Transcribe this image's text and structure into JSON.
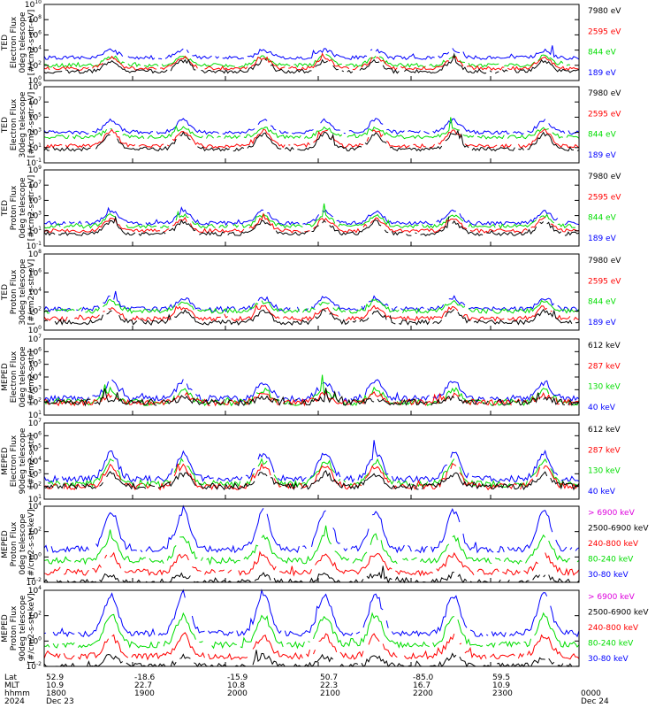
{
  "chart_data": [
    {
      "type": "line",
      "instrument": "TED",
      "ylabel_lines": [
        "TED",
        "Electron Flux",
        "0deg telescope",
        "[#/cm2-s-str-eV]"
      ],
      "y_exponents": [
        0,
        2,
        4,
        6,
        8,
        10
      ],
      "yscale": "log",
      "legend": [
        {
          "label": "7980 eV",
          "color": "#000000"
        },
        {
          "label": "2595 eV",
          "color": "#ff0000"
        },
        {
          "label": "844 eV",
          "color": "#00dd00"
        },
        {
          "label": "189 eV",
          "color": "#0000ff"
        }
      ],
      "series_levels": [
        {
          "color": "#0000ff",
          "base": 3.0,
          "active": 4.0
        },
        {
          "color": "#00dd00",
          "base": 2.0,
          "active": 3.2
        },
        {
          "color": "#ff0000",
          "base": 1.6,
          "active": 3.0
        },
        {
          "color": "#000000",
          "base": 1.2,
          "active": 2.6
        }
      ]
    },
    {
      "type": "line",
      "instrument": "TED",
      "ylabel_lines": [
        "TED",
        "Electron Flux",
        "30deg telescope",
        "[#/cm2-s-str-eV]"
      ],
      "y_exponents": [
        -1,
        1,
        3,
        5,
        7,
        9
      ],
      "yscale": "log",
      "legend": [
        {
          "label": "7980 eV",
          "color": "#000000"
        },
        {
          "label": "2595 eV",
          "color": "#ff0000"
        },
        {
          "label": "844 eV",
          "color": "#00dd00"
        },
        {
          "label": "189 eV",
          "color": "#0000ff"
        }
      ],
      "series_levels": [
        {
          "color": "#0000ff",
          "base": 3.0,
          "active": 4.6
        },
        {
          "color": "#00dd00",
          "base": 2.4,
          "active": 3.6
        },
        {
          "color": "#ff0000",
          "base": 1.2,
          "active": 3.2
        },
        {
          "color": "#000000",
          "base": 0.8,
          "active": 2.8
        }
      ]
    },
    {
      "type": "line",
      "instrument": "TED",
      "ylabel_lines": [
        "TED",
        "Proton Flux",
        "0deg telescope",
        "[#/cm2-s-str-eV]"
      ],
      "y_exponents": [
        -1,
        1,
        3,
        5,
        7,
        9
      ],
      "yscale": "log",
      "legend": [
        {
          "label": "7980 eV",
          "color": "#000000"
        },
        {
          "label": "2595 eV",
          "color": "#ff0000"
        },
        {
          "label": "844 eV",
          "color": "#00dd00"
        },
        {
          "label": "189 eV",
          "color": "#0000ff"
        }
      ],
      "series_levels": [
        {
          "color": "#0000ff",
          "base": 2.0,
          "active": 3.6
        },
        {
          "color": "#00dd00",
          "base": 1.6,
          "active": 3.0
        },
        {
          "color": "#ff0000",
          "base": 1.0,
          "active": 2.6
        },
        {
          "color": "#000000",
          "base": 0.6,
          "active": 2.2
        }
      ]
    },
    {
      "type": "line",
      "instrument": "TED",
      "ylabel_lines": [
        "TED",
        "Proton Flux",
        "30deg telescope",
        "[#/cm2-s-str-eV]"
      ],
      "y_exponents": [
        0,
        2,
        4,
        6,
        8
      ],
      "yscale": "log",
      "legend": [
        {
          "label": "7980 eV",
          "color": "#000000"
        },
        {
          "label": "2595 eV",
          "color": "#ff0000"
        },
        {
          "label": "844 eV",
          "color": "#00dd00"
        },
        {
          "label": "189 eV",
          "color": "#0000ff"
        }
      ],
      "series_levels": [
        {
          "color": "#0000ff",
          "base": 2.2,
          "active": 3.4
        },
        {
          "color": "#00dd00",
          "base": 2.0,
          "active": 3.0
        },
        {
          "color": "#ff0000",
          "base": 1.2,
          "active": 2.4
        },
        {
          "color": "#000000",
          "base": 0.8,
          "active": 2.0
        }
      ]
    },
    {
      "type": "line",
      "instrument": "MEPED",
      "ylabel_lines": [
        "MEPED",
        "Electron Flux",
        "0deg telescope",
        "[#/cm2-s-str]"
      ],
      "y_exponents": [
        1,
        2,
        3,
        4,
        5,
        6,
        7
      ],
      "yscale": "log",
      "legend": [
        {
          "label": "612 keV",
          "color": "#000000"
        },
        {
          "label": "287 keV",
          "color": "#ff0000"
        },
        {
          "label": "130 keV",
          "color": "#00dd00"
        },
        {
          "label": "40 keV",
          "color": "#0000ff"
        }
      ],
      "series_levels": [
        {
          "color": "#0000ff",
          "base": 2.3,
          "active": 3.6
        },
        {
          "color": "#00dd00",
          "base": 2.0,
          "active": 3.0
        },
        {
          "color": "#ff0000",
          "base": 2.0,
          "active": 2.6
        },
        {
          "color": "#000000",
          "base": 2.0,
          "active": 2.3
        }
      ]
    },
    {
      "type": "line",
      "instrument": "MEPED",
      "ylabel_lines": [
        "MEPED",
        "Electron Flux",
        "90deg telescope",
        "[#/cm2-s-str]"
      ],
      "y_exponents": [
        1,
        2,
        3,
        4,
        5,
        6,
        7
      ],
      "yscale": "log",
      "legend": [
        {
          "label": "612 keV",
          "color": "#000000"
        },
        {
          "label": "287 keV",
          "color": "#ff0000"
        },
        {
          "label": "130 keV",
          "color": "#00dd00"
        },
        {
          "label": "40 keV",
          "color": "#0000ff"
        }
      ],
      "series_levels": [
        {
          "color": "#0000ff",
          "base": 2.6,
          "active": 4.6
        },
        {
          "color": "#00dd00",
          "base": 2.2,
          "active": 4.0
        },
        {
          "color": "#ff0000",
          "base": 2.0,
          "active": 3.6
        },
        {
          "color": "#000000",
          "base": 2.0,
          "active": 3.0
        }
      ]
    },
    {
      "type": "line",
      "instrument": "MEPED",
      "ylabel_lines": [
        "MEPED",
        "Proton Flux",
        "0deg telescope",
        "[#/cm2-s-str-keV]"
      ],
      "y_exponents": [
        -2,
        0,
        2,
        4
      ],
      "yscale": "log",
      "legend": [
        {
          "label": "> 6900 keV",
          "color": "#dd00dd"
        },
        {
          "label": "2500-6900 keV",
          "color": "#000000"
        },
        {
          "label": "240-800 keV",
          "color": "#ff0000"
        },
        {
          "label": "80-240 keV",
          "color": "#00dd00"
        },
        {
          "label": "30-80 keV",
          "color": "#0000ff"
        }
      ],
      "series_levels": [
        {
          "color": "#0000ff",
          "base": 0.6,
          "active": 3.6
        },
        {
          "color": "#00dd00",
          "base": -0.3,
          "active": 1.6
        },
        {
          "color": "#ff0000",
          "base": -1.2,
          "active": 0.2
        },
        {
          "color": "#000000",
          "base": -2.0,
          "active": -1.4
        }
      ]
    },
    {
      "type": "line",
      "instrument": "MEPED",
      "ylabel_lines": [
        "MEPED",
        "Proton Flux",
        "90deg telescope",
        "[#/cm2-s-str-keV]"
      ],
      "y_exponents": [
        -2,
        0,
        2,
        4
      ],
      "yscale": "log",
      "legend": [
        {
          "label": "> 6900 keV",
          "color": "#dd00dd"
        },
        {
          "label": "2500-6900 keV",
          "color": "#000000"
        },
        {
          "label": "240-800 keV",
          "color": "#ff0000"
        },
        {
          "label": "80-240 keV",
          "color": "#00dd00"
        },
        {
          "label": "30-80 keV",
          "color": "#0000ff"
        }
      ],
      "series_levels": [
        {
          "color": "#0000ff",
          "base": 0.6,
          "active": 3.6
        },
        {
          "color": "#00dd00",
          "base": -0.3,
          "active": 2.0
        },
        {
          "color": "#ff0000",
          "base": -1.2,
          "active": 0.4
        },
        {
          "color": "#000000",
          "base": -2.0,
          "active": -1.2
        }
      ]
    }
  ],
  "x_axis": {
    "row_labels": [
      "Lat",
      "MLT",
      "hhmm",
      "2024"
    ],
    "ticks": [
      {
        "lat": "52.9",
        "mlt": "10.9",
        "hhmm": "1800",
        "date": "Dec 23"
      },
      {
        "lat": "-18.6",
        "mlt": "22.7",
        "hhmm": "1900",
        "date": ""
      },
      {
        "lat": "-15.9",
        "mlt": "10.8",
        "hhmm": "2000",
        "date": ""
      },
      {
        "lat": "50.7",
        "mlt": "22.3",
        "hhmm": "2100",
        "date": ""
      },
      {
        "lat": "-85.0",
        "mlt": "16.7",
        "hhmm": "2200",
        "date": ""
      },
      {
        "lat": "59.5",
        "mlt": "10.9",
        "hhmm": "2300",
        "date": ""
      },
      {
        "lat": "",
        "mlt": "",
        "hhmm": "0000",
        "date": "Dec 24"
      }
    ]
  }
}
